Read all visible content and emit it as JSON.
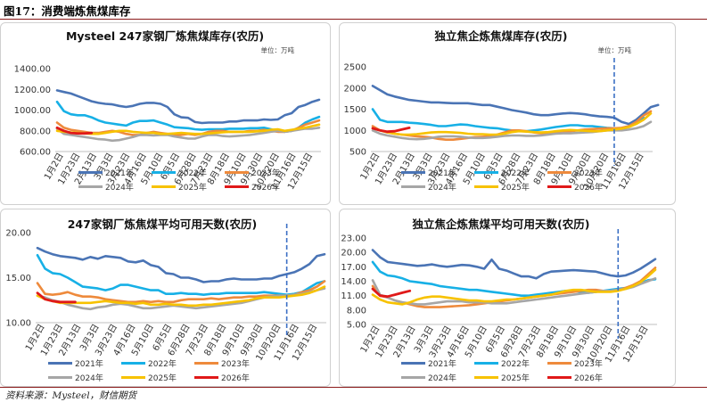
{
  "figure_title": "图17：消费端炼焦煤库存",
  "source": "资料来源：Mysteel，财信期货",
  "unit_label": "单位：万吨",
  "colors": {
    "2021年": "#4a74b5",
    "2022年": "#17b0e6",
    "2023年": "#ee8a3c",
    "2024年": "#a6a6a6",
    "2025年": "#f7c200",
    "2026年": "#e01919",
    "marker": "#3b6fc4"
  },
  "chart_data": [
    {
      "type": "line",
      "title": "Mysteel 247家钢厂炼焦煤库存(农历)",
      "unit": "单位：万吨",
      "yticks": [
        "1400.00",
        "1200.00",
        "1000.00",
        "800.00",
        "600.00"
      ],
      "ylim": [
        600,
        1400
      ],
      "xticks": [
        "1月2日",
        "1月23日",
        "2月13日",
        "3月3日",
        "3月23日",
        "4月16日",
        "5月10日",
        "6月5日",
        "6月28日",
        "7月23日",
        "8月18日",
        "9月10日",
        "9月30日",
        "10月20日",
        "11月16日",
        "12月15日"
      ],
      "marker_at": null,
      "series": [
        {
          "name": "2021年",
          "values": [
            1190,
            1175,
            1160,
            1135,
            1110,
            1085,
            1070,
            1060,
            1055,
            1040,
            1030,
            1040,
            1060,
            1070,
            1070,
            1060,
            1030,
            960,
            930,
            925,
            885,
            875,
            880,
            880,
            880,
            890,
            890,
            900,
            900,
            900,
            910,
            905,
            910,
            950,
            970,
            1030,
            1050,
            1080,
            1100
          ]
        },
        {
          "name": "2022年",
          "values": [
            1080,
            990,
            960,
            950,
            950,
            930,
            900,
            880,
            870,
            860,
            850,
            880,
            895,
            895,
            900,
            880,
            860,
            835,
            830,
            825,
            815,
            810,
            815,
            815,
            815,
            820,
            820,
            820,
            825,
            825,
            830,
            815,
            800,
            790,
            800,
            830,
            880,
            910,
            935
          ]
        },
        {
          "name": "2023年",
          "values": [
            880,
            830,
            810,
            800,
            790,
            780,
            780,
            790,
            800,
            790,
            770,
            760,
            760,
            780,
            790,
            780,
            770,
            760,
            760,
            770,
            760,
            770,
            790,
            800,
            800,
            790,
            790,
            790,
            800,
            800,
            810,
            800,
            790,
            790,
            800,
            830,
            860,
            880,
            900
          ]
        },
        {
          "name": "2024年",
          "values": [
            820,
            770,
            760,
            750,
            740,
            730,
            720,
            715,
            705,
            710,
            725,
            740,
            760,
            760,
            755,
            760,
            760,
            745,
            735,
            725,
            725,
            745,
            760,
            760,
            750,
            745,
            750,
            755,
            760,
            770,
            780,
            790,
            800,
            790,
            800,
            810,
            820,
            820,
            830
          ]
        },
        {
          "name": "2025年",
          "values": [
            800,
            790,
            785,
            780,
            775,
            770,
            770,
            780,
            790,
            800,
            800,
            790,
            785,
            780,
            780,
            770,
            770,
            775,
            780,
            775,
            770,
            770,
            775,
            780,
            785,
            790,
            790,
            790,
            790,
            795,
            800,
            810,
            815,
            800,
            810,
            820,
            830,
            845,
            860
          ]
        },
        {
          "name": "2026年",
          "values": [
            830,
            800,
            780,
            775,
            775,
            780
          ]
        }
      ]
    },
    {
      "type": "line",
      "title": "独立焦企炼焦煤库存(农历)",
      "unit": "单位：万吨",
      "yticks": [
        "2500",
        "2000",
        "1500",
        "1000",
        "500"
      ],
      "ylim": [
        500,
        2500
      ],
      "xticks": [
        "1月2日",
        "1月23日",
        "2月13日",
        "3月3日",
        "3月23日",
        "4月16日",
        "5月10日",
        "6月5日",
        "6月28日",
        "7月23日",
        "8月18日",
        "9月10日",
        "9月30日",
        "10月20日",
        "11月16日",
        "12月15日"
      ],
      "marker_at": 33,
      "series": [
        {
          "name": "2021年",
          "values": [
            2050,
            1950,
            1850,
            1800,
            1760,
            1720,
            1700,
            1680,
            1660,
            1660,
            1650,
            1640,
            1640,
            1640,
            1620,
            1600,
            1600,
            1560,
            1520,
            1480,
            1450,
            1420,
            1380,
            1360,
            1360,
            1380,
            1400,
            1410,
            1400,
            1380,
            1350,
            1330,
            1320,
            1300,
            1200,
            1150,
            1250,
            1400,
            1550,
            1600
          ]
        },
        {
          "name": "2022年",
          "values": [
            1500,
            1250,
            1200,
            1200,
            1200,
            1180,
            1170,
            1150,
            1130,
            1100,
            1100,
            1120,
            1140,
            1130,
            1100,
            1080,
            1060,
            1050,
            1020,
            1000,
            980,
            980,
            1000,
            1020,
            1050,
            1080,
            1100,
            1120,
            1120,
            1100,
            1100,
            1080,
            1060,
            1050,
            1050,
            1100,
            1200,
            1300
          ]
        },
        {
          "name": "2023年",
          "values": [
            1100,
            1000,
            950,
            920,
            900,
            880,
            860,
            850,
            830,
            800,
            780,
            780,
            800,
            820,
            840,
            850,
            860,
            900,
            950,
            1000,
            1000,
            980,
            950,
            930,
            920,
            940,
            960,
            980,
            1000,
            1020,
            1030,
            1040,
            1050,
            1050,
            1060,
            1100,
            1200,
            1350,
            1450
          ]
        },
        {
          "name": "2024年",
          "values": [
            1000,
            920,
            880,
            850,
            820,
            800,
            790,
            800,
            820,
            850,
            860,
            860,
            850,
            830,
            820,
            820,
            830,
            850,
            870,
            880,
            880,
            870,
            870,
            880,
            900,
            920,
            930,
            930,
            940,
            950,
            960,
            980,
            1000,
            1000,
            1000,
            1020,
            1050,
            1100,
            1200
          ]
        },
        {
          "name": "2025年",
          "values": [
            1050,
            1000,
            960,
            920,
            900,
            900,
            910,
            930,
            950,
            960,
            960,
            950,
            940,
            920,
            910,
            910,
            900,
            900,
            920,
            960,
            980,
            970,
            960,
            950,
            960,
            980,
            1000,
            1010,
            1000,
            990,
            980,
            980,
            1000,
            1020,
            1040,
            1080,
            1150,
            1250,
            1400
          ]
        },
        {
          "name": "2026年",
          "values": [
            1050,
            1000,
            970,
            980,
            1020,
            1060
          ]
        }
      ]
    },
    {
      "type": "line",
      "title": "247家钢厂炼焦煤平均可用天数(农历)",
      "yticks": [
        "20.00",
        "15.00",
        "10.00"
      ],
      "ylim": [
        10,
        20
      ],
      "xticks": [
        "1月2日",
        "1月23日",
        "2月13日",
        "3月3日",
        "3月23日",
        "4月16日",
        "5月10日",
        "6月5日",
        "6月28日",
        "7月23日",
        "8月18日",
        "9月10日",
        "9月30日",
        "10月20日",
        "11月16日",
        "12月15日"
      ],
      "marker_at": 33,
      "series": [
        {
          "name": "2021年",
          "values": [
            18.3,
            17.9,
            17.6,
            17.4,
            17.3,
            17.2,
            17.0,
            17.3,
            17.1,
            17.4,
            17.3,
            17.2,
            16.8,
            16.7,
            16.9,
            16.4,
            16.2,
            15.5,
            15.4,
            15.0,
            15.0,
            14.8,
            14.5,
            14.6,
            14.6,
            14.8,
            14.9,
            14.8,
            14.8,
            14.8,
            14.9,
            14.9,
            15.2,
            15.4,
            15.6,
            16.0,
            16.5,
            17.4,
            17.6
          ]
        },
        {
          "name": "2022年",
          "values": [
            17.5,
            16.0,
            15.5,
            15.4,
            15.0,
            14.5,
            14.0,
            13.9,
            13.8,
            13.6,
            13.8,
            14.2,
            14.2,
            14.0,
            13.8,
            13.6,
            13.6,
            13.2,
            13.2,
            13.3,
            13.2,
            13.2,
            13.1,
            13.2,
            13.2,
            13.3,
            13.3,
            13.3,
            13.3,
            13.3,
            13.4,
            13.3,
            13.2,
            13.1,
            13.2,
            13.4,
            13.9,
            14.4,
            14.6
          ]
        },
        {
          "name": "2023年",
          "values": [
            14.4,
            13.2,
            13.1,
            13.2,
            13.4,
            13.1,
            12.9,
            12.9,
            12.8,
            12.6,
            12.5,
            12.4,
            12.3,
            12.3,
            12.4,
            12.3,
            12.4,
            12.3,
            12.3,
            12.5,
            12.6,
            12.6,
            12.6,
            12.7,
            12.6,
            12.7,
            12.8,
            12.8,
            12.9,
            12.9,
            13.0,
            13.0,
            13.0,
            13.0,
            13.1,
            13.4,
            13.6,
            14.0,
            14.6
          ]
        },
        {
          "name": "2024年",
          "values": [
            13.0,
            12.8,
            12.5,
            12.3,
            12.0,
            11.8,
            11.6,
            11.5,
            11.7,
            11.8,
            12.0,
            12.1,
            12.0,
            11.8,
            11.6,
            11.6,
            11.7,
            11.8,
            11.9,
            11.8,
            11.7,
            11.6,
            11.7,
            11.8,
            11.9,
            12.0,
            12.1,
            12.2,
            12.4,
            12.6,
            12.8,
            12.9,
            13.0,
            13.0,
            13.1,
            13.2,
            13.4,
            13.6,
            13.8
          ]
        },
        {
          "name": "2025年",
          "values": [
            13.0,
            12.6,
            12.4,
            12.2,
            12.2,
            12.2,
            12.2,
            12.2,
            12.3,
            12.4,
            12.3,
            12.2,
            12.2,
            12.1,
            12.2,
            12.0,
            12.0,
            12.1,
            12.0,
            12.0,
            11.9,
            11.9,
            12.0,
            12.0,
            12.1,
            12.2,
            12.3,
            12.4,
            12.5,
            12.7,
            12.8,
            12.8,
            12.8,
            12.9,
            13.0,
            13.1,
            13.3,
            13.6,
            14.0
          ]
        },
        {
          "name": "2026年",
          "values": [
            13.3,
            12.6,
            12.4,
            12.3,
            12.3,
            12.3
          ]
        }
      ]
    },
    {
      "type": "line",
      "title": "独立焦企炼焦煤平均可用天数(农历)",
      "yticks": [
        "23.00",
        "20.00",
        "17.00",
        "14.00",
        "11.00",
        "8.00",
        "5.00"
      ],
      "ylim": [
        5,
        23
      ],
      "xticks": [
        "1月2日",
        "1月23日",
        "2月13日",
        "3月3日",
        "3月23日",
        "4月16日",
        "5月10日",
        "6月5日",
        "6月28日",
        "7月23日",
        "8月18日",
        "9月10日",
        "9月30日",
        "10月20日",
        "11月16日",
        "12月15日"
      ],
      "marker_at": 33,
      "series": [
        {
          "name": "2021年",
          "values": [
            20.5,
            19.0,
            18.0,
            17.8,
            17.6,
            17.4,
            17.2,
            17.3,
            17.5,
            17.2,
            17.0,
            17.2,
            17.4,
            17.3,
            17.0,
            16.6,
            18.5,
            16.6,
            16.2,
            15.6,
            15.0,
            15.0,
            14.6,
            15.5,
            16.0,
            16.1,
            16.2,
            16.3,
            16.2,
            16.1,
            16.0,
            15.6,
            15.2,
            15.0,
            15.2,
            15.8,
            16.6,
            17.6,
            18.6
          ]
        },
        {
          "name": "2022年",
          "values": [
            18.0,
            16.0,
            15.2,
            15.0,
            14.6,
            14.0,
            13.8,
            13.6,
            13.4,
            13.0,
            12.8,
            12.6,
            12.4,
            12.2,
            12.2,
            12.0,
            11.8,
            11.6,
            11.4,
            11.2,
            11.0,
            11.0,
            11.2,
            11.4,
            11.6,
            11.8,
            12.0,
            12.0,
            11.8,
            11.6,
            11.8,
            12.0,
            12.2,
            12.4,
            12.6,
            13.0,
            13.6,
            14.2,
            14.4
          ]
        },
        {
          "name": "2023年",
          "values": [
            13.0,
            11.0,
            10.6,
            10.0,
            9.6,
            9.2,
            8.8,
            8.6,
            8.6,
            8.6,
            8.7,
            8.8,
            8.9,
            9.0,
            9.2,
            9.4,
            9.6,
            9.8,
            10.0,
            10.2,
            10.4,
            10.6,
            10.8,
            11.0,
            11.2,
            11.4,
            11.6,
            11.8,
            12.0,
            12.2,
            12.2,
            12.0,
            12.0,
            12.2,
            12.6,
            13.2,
            14.0,
            15.4,
            16.8
          ]
        },
        {
          "name": "2024年",
          "values": [
            14.2,
            11.2,
            10.6,
            10.0,
            9.6,
            9.4,
            9.2,
            9.2,
            9.4,
            9.6,
            9.8,
            9.8,
            9.8,
            9.6,
            9.6,
            9.6,
            9.4,
            9.4,
            9.4,
            9.6,
            9.8,
            10.0,
            10.2,
            10.4,
            10.6,
            10.8,
            11.0,
            11.2,
            11.4,
            11.6,
            11.8,
            12.0,
            12.0,
            12.2,
            12.4,
            12.8,
            13.4,
            14.0,
            14.6
          ]
        },
        {
          "name": "2025年",
          "values": [
            11.2,
            10.2,
            9.6,
            9.4,
            9.2,
            9.6,
            10.2,
            10.6,
            10.8,
            10.8,
            10.6,
            10.4,
            10.2,
            10.0,
            10.0,
            9.8,
            9.8,
            10.0,
            10.2,
            10.2,
            10.4,
            10.6,
            10.8,
            11.0,
            11.2,
            11.6,
            12.0,
            12.2,
            12.2,
            12.0,
            11.8,
            11.8,
            11.8,
            12.0,
            12.4,
            13.0,
            13.8,
            15.0,
            16.4
          ]
        },
        {
          "name": "2026年",
          "values": [
            12.4,
            11.0,
            10.8,
            11.2,
            11.6,
            12.0
          ]
        }
      ]
    }
  ]
}
